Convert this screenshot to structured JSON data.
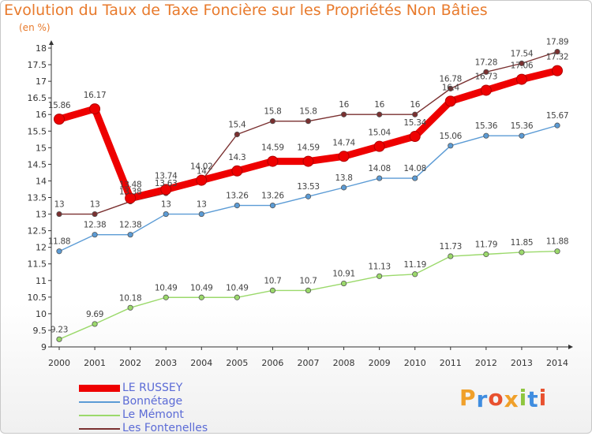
{
  "header": {
    "title": "Evolution du Taux de Taxe Foncière sur les Propriétés Non Bâties",
    "unit": "(en %)"
  },
  "logo": {
    "text": "Proxiti",
    "colors": [
      "#f0a02a",
      "#3f8de0",
      "#e8512f",
      "#f0a02a",
      "#8ec63f",
      "#3f8de0",
      "#e8512f"
    ]
  },
  "chart_data": {
    "type": "line",
    "x": [
      2000,
      2001,
      2002,
      2003,
      2004,
      2005,
      2006,
      2007,
      2008,
      2009,
      2010,
      2011,
      2012,
      2013,
      2014
    ],
    "ylim": [
      9,
      18
    ],
    "yticks": [
      9,
      9.5,
      10,
      10.5,
      11,
      11.5,
      12,
      12.5,
      13,
      13.5,
      14,
      14.5,
      15,
      15.5,
      16,
      16.5,
      17,
      17.5,
      18
    ],
    "grid": false,
    "legend_position": "bottom-left",
    "series": [
      {
        "name": "LE RUSSEY",
        "color": "#ee0000",
        "values": [
          15.86,
          16.17,
          13.48,
          13.74,
          14.02,
          14.3,
          14.59,
          14.59,
          14.74,
          15.04,
          15.34,
          16.4,
          16.73,
          17.06,
          17.32
        ],
        "labels": [
          "15.86",
          "16.17",
          "13.48",
          "13.74",
          "14.02",
          "14.3",
          "14.59",
          "14.59",
          "14.74",
          "15.04",
          "15.34",
          "16.4",
          "16.73",
          "17.06",
          "17.32"
        ]
      },
      {
        "name": "Bonnétage",
        "color": "#5b9bd5",
        "values": [
          11.88,
          12.38,
          12.38,
          13,
          13,
          13.26,
          13.26,
          13.53,
          13.8,
          14.08,
          14.08,
          15.06,
          15.36,
          15.36,
          15.67
        ],
        "labels": [
          "11.88",
          "12.38",
          "12.38",
          "13",
          "13",
          "13.26",
          "13.26",
          "13.53",
          "13.8",
          "14.08",
          "14.08",
          "15.06",
          "15.36",
          "15.36",
          "15.67"
        ]
      },
      {
        "name": "Le Mémont",
        "color": "#9bd96b",
        "values": [
          9.23,
          9.69,
          10.18,
          10.49,
          10.49,
          10.49,
          10.7,
          10.7,
          10.91,
          11.13,
          11.19,
          11.73,
          11.79,
          11.85,
          11.88
        ],
        "labels": [
          "9.23",
          "9.69",
          "10.18",
          "10.49",
          "10.49",
          "10.49",
          "10.7",
          "10.7",
          "10.91",
          "11.13",
          "11.19",
          "11.73",
          "11.79",
          "11.85",
          "11.88"
        ]
      },
      {
        "name": "Les Fontenelles",
        "color": "#7a3030",
        "values": [
          13,
          13,
          13.38,
          13.63,
          14,
          15.4,
          15.8,
          15.8,
          16,
          16,
          16,
          16.78,
          17.28,
          17.54,
          17.89
        ],
        "labels": [
          "13",
          "13",
          "13.38",
          "13.63",
          "14",
          "15.4",
          "15.8",
          "15.8",
          "16",
          "16",
          "16",
          "16.78",
          "17.28",
          "17.54",
          "17.89"
        ]
      }
    ]
  }
}
